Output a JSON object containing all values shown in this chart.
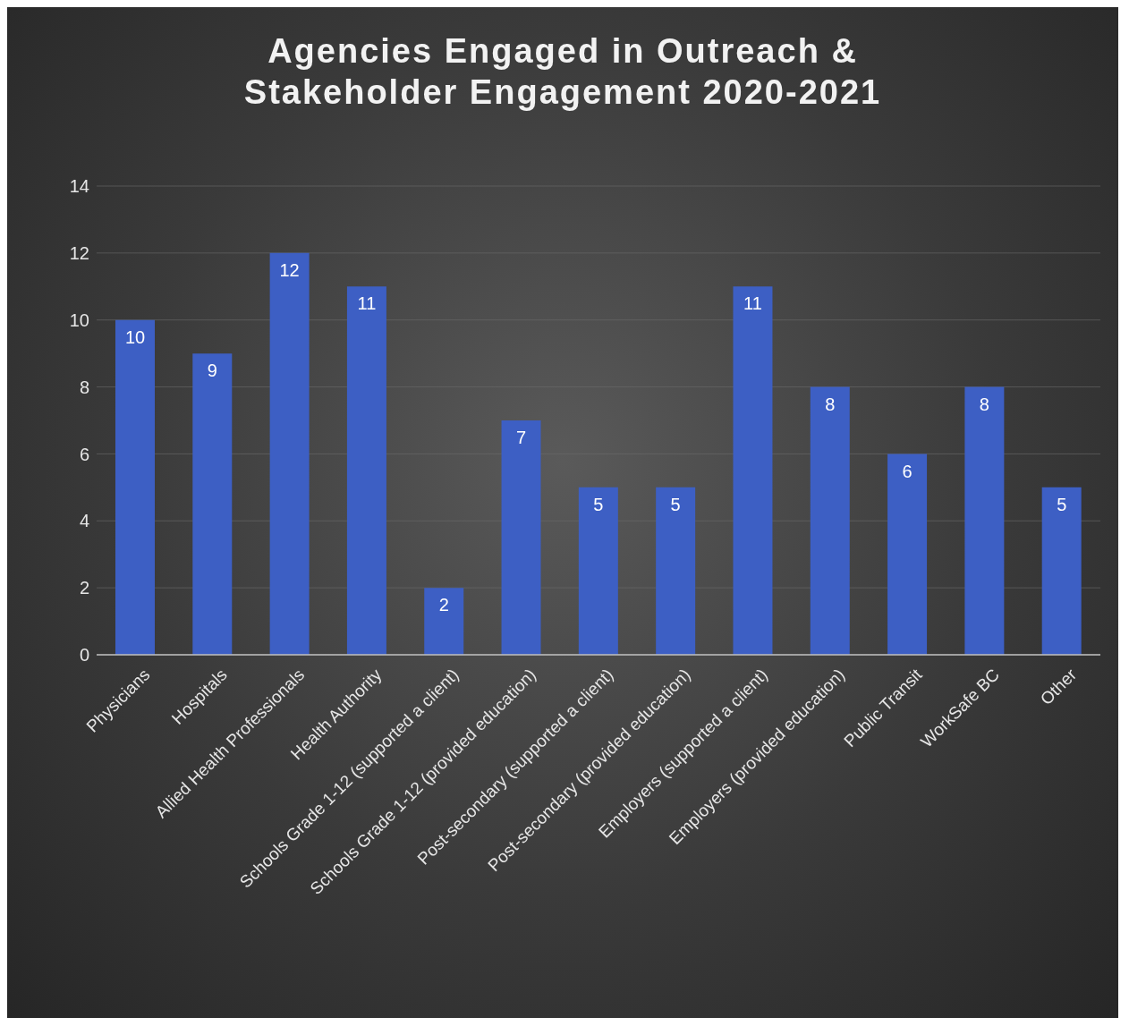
{
  "chart_data": {
    "type": "bar",
    "title": "Agencies Engaged in Outreach &\nStakeholder Engagement 2020-2021",
    "categories": [
      "Physicians",
      "Hospitals",
      "Allied Health Professionals",
      "Health Authority",
      "Schools Grade 1-12 (supported a client)",
      "Schools Grade 1-12 (provided education)",
      "Post-secondary (supported a client)",
      "Post-secondary (provided education)",
      "Employers (supported a client)",
      "Employers (provided education)",
      "Public Transit",
      "WorkSafe BC",
      "Other"
    ],
    "values": [
      10,
      9,
      12,
      11,
      2,
      7,
      5,
      5,
      11,
      8,
      6,
      8,
      5
    ],
    "color": "#3d5fc4",
    "ylim": [
      0,
      14
    ],
    "yticks": [
      0,
      2,
      4,
      6,
      8,
      10,
      12,
      14
    ],
    "grid": "y",
    "data_labels": true
  }
}
